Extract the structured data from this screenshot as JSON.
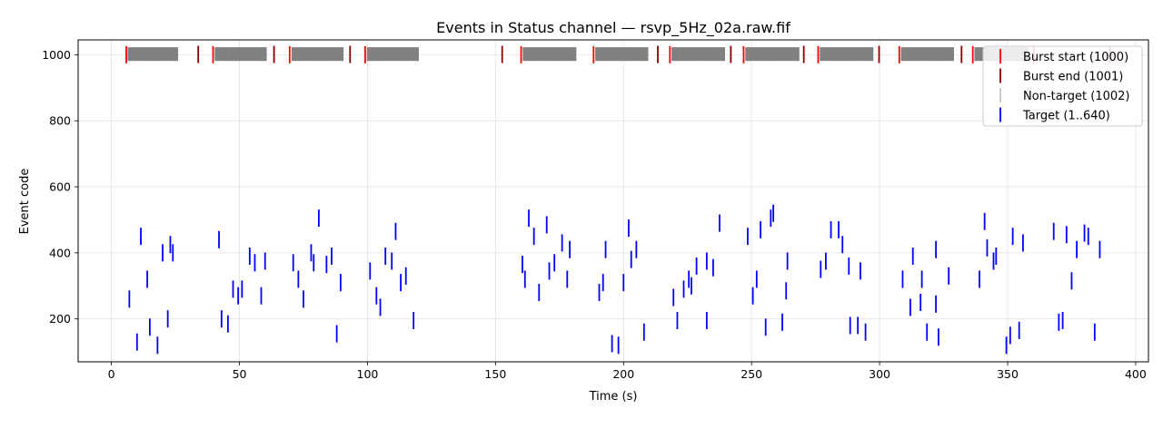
{
  "chart_data": {
    "type": "event-raster",
    "title": "Events in Status channel — rsvp_5Hz_02a.raw.fif",
    "xlabel": "Time (s)",
    "ylabel": "Event code",
    "xlim": [
      -13,
      405
    ],
    "ylim": [
      70,
      1045
    ],
    "x_ticks": [
      0,
      50,
      100,
      150,
      200,
      250,
      300,
      350,
      400
    ],
    "y_ticks": [
      200,
      400,
      600,
      800,
      1000
    ],
    "grid": true,
    "legend_position": "top-right",
    "series": [
      {
        "name": "Burst start (1000)",
        "color": "#ff0000",
        "code": 1000,
        "times": [
          5.8,
          39.7,
          69.6,
          99.1,
          160.0,
          188.3,
          218.1,
          246.9,
          276.0,
          307.7,
          336.4
        ]
      },
      {
        "name": "Burst end (1001)",
        "color": "#8b0000",
        "code": 1001,
        "times": [
          33.9,
          63.5,
          93.2,
          152.6,
          213.4,
          241.9,
          270.4,
          299.8,
          332.0,
          360.2,
          389.9
        ]
      },
      {
        "name": "Non-target (1002)",
        "color": "#808080",
        "code": 1002,
        "blocks": [
          [
            6.5,
            26.0
          ],
          [
            40.5,
            60.5
          ],
          [
            70.5,
            90.5
          ],
          [
            99.9,
            120.0
          ],
          [
            160.8,
            181.5
          ],
          [
            189.1,
            209.5
          ],
          [
            218.9,
            239.5
          ],
          [
            247.7,
            268.5
          ],
          [
            276.8,
            297.5
          ],
          [
            308.5,
            329.0
          ],
          [
            337.2,
            358.0
          ]
        ],
        "block_spacing": 0.2
      },
      {
        "name": "Target (1..640)",
        "color": "#0000ff",
        "points": [
          [
            7,
            260
          ],
          [
            10,
            130
          ],
          [
            11.5,
            450
          ],
          [
            14,
            320
          ],
          [
            15,
            175
          ],
          [
            18,
            120
          ],
          [
            20,
            400
          ],
          [
            22,
            200
          ],
          [
            23,
            425
          ],
          [
            24,
            400
          ],
          [
            42,
            440
          ],
          [
            43,
            200
          ],
          [
            45.5,
            185
          ],
          [
            47.5,
            290
          ],
          [
            49.5,
            270
          ],
          [
            51,
            290
          ],
          [
            54,
            390
          ],
          [
            56,
            370
          ],
          [
            58.5,
            270
          ],
          [
            60,
            375
          ],
          [
            71,
            370
          ],
          [
            73,
            320
          ],
          [
            75,
            260
          ],
          [
            78,
            400
          ],
          [
            79,
            370
          ],
          [
            81,
            505
          ],
          [
            84,
            365
          ],
          [
            86,
            390
          ],
          [
            88,
            155
          ],
          [
            89.5,
            310
          ],
          [
            101,
            345
          ],
          [
            103.5,
            270
          ],
          [
            105,
            235
          ],
          [
            107,
            390
          ],
          [
            109.5,
            375
          ],
          [
            111,
            465
          ],
          [
            113,
            310
          ],
          [
            115,
            330
          ],
          [
            118,
            195
          ],
          [
            160.5,
            365
          ],
          [
            161.5,
            320
          ],
          [
            163,
            505
          ],
          [
            165,
            450
          ],
          [
            167,
            280
          ],
          [
            170,
            485
          ],
          [
            171,
            345
          ],
          [
            173,
            370
          ],
          [
            176,
            430
          ],
          [
            178,
            320
          ],
          [
            179,
            410
          ],
          [
            190.5,
            280
          ],
          [
            192,
            310
          ],
          [
            193,
            410
          ],
          [
            195.5,
            125
          ],
          [
            198,
            120
          ],
          [
            200,
            310
          ],
          [
            202,
            475
          ],
          [
            203,
            380
          ],
          [
            205,
            410
          ],
          [
            208,
            160
          ],
          [
            219.5,
            265
          ],
          [
            221,
            195
          ],
          [
            223.5,
            290
          ],
          [
            225.5,
            320
          ],
          [
            226.5,
            300
          ],
          [
            228.5,
            360
          ],
          [
            232.5,
            195
          ],
          [
            232.5,
            375
          ],
          [
            235,
            355
          ],
          [
            237.5,
            490
          ],
          [
            248.5,
            450
          ],
          [
            250.5,
            270
          ],
          [
            252,
            320
          ],
          [
            253.5,
            470
          ],
          [
            255.5,
            175
          ],
          [
            257.5,
            505
          ],
          [
            258.5,
            520
          ],
          [
            262,
            190
          ],
          [
            263.5,
            285
          ],
          [
            264,
            375
          ],
          [
            277,
            350
          ],
          [
            279,
            375
          ],
          [
            281,
            470
          ],
          [
            284,
            470
          ],
          [
            285.5,
            425
          ],
          [
            288,
            360
          ],
          [
            288.5,
            180
          ],
          [
            291.5,
            180
          ],
          [
            292.5,
            345
          ],
          [
            294.5,
            160
          ],
          [
            309,
            320
          ],
          [
            312,
            235
          ],
          [
            313,
            390
          ],
          [
            316,
            250
          ],
          [
            316.5,
            320
          ],
          [
            318.5,
            160
          ],
          [
            322,
            410
          ],
          [
            322,
            245
          ],
          [
            323,
            145
          ],
          [
            327,
            330
          ],
          [
            339,
            320
          ],
          [
            341,
            495
          ],
          [
            342,
            415
          ],
          [
            344.5,
            375
          ],
          [
            345.5,
            390
          ],
          [
            349.5,
            120
          ],
          [
            351,
            150
          ],
          [
            352,
            450
          ],
          [
            354.5,
            165
          ],
          [
            356,
            430
          ],
          [
            368,
            465
          ],
          [
            370,
            190
          ],
          [
            371.5,
            195
          ],
          [
            373,
            455
          ],
          [
            375,
            315
          ],
          [
            377,
            410
          ],
          [
            380,
            460
          ],
          [
            381.5,
            450
          ],
          [
            384,
            160
          ],
          [
            386,
            410
          ]
        ]
      }
    ]
  }
}
